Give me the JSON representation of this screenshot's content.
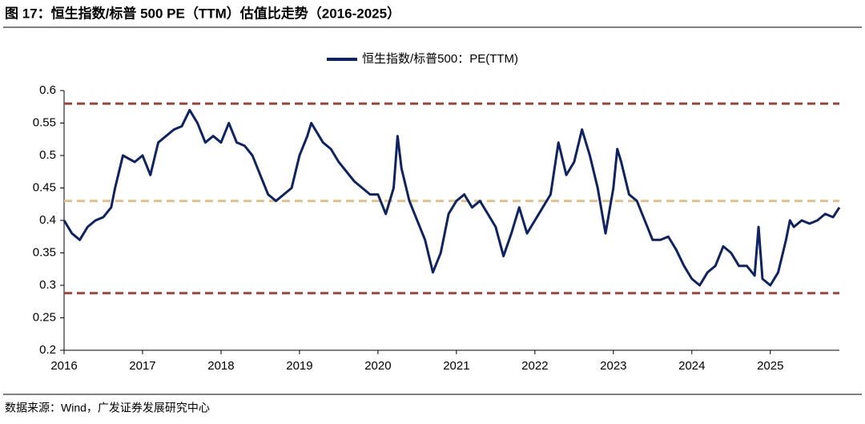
{
  "chart_data": {
    "type": "line",
    "title": "图 17：恒生指数/标普 500 PE（TTM）估值比走势（2016-2025）",
    "source": "数据来源：Wind，广发证券发展研究中心",
    "series": [
      {
        "name": "恒生指数/标普500：PE(TTM)",
        "color": "#0d2366",
        "x": [
          2016.0,
          2016.1,
          2016.2,
          2016.3,
          2016.4,
          2016.5,
          2016.6,
          2016.65,
          2016.75,
          2016.9,
          2017.0,
          2017.1,
          2017.2,
          2017.3,
          2017.4,
          2017.5,
          2017.6,
          2017.7,
          2017.8,
          2017.9,
          2018.0,
          2018.1,
          2018.2,
          2018.3,
          2018.4,
          2018.5,
          2018.6,
          2018.7,
          2018.8,
          2018.9,
          2019.0,
          2019.1,
          2019.15,
          2019.3,
          2019.4,
          2019.5,
          2019.6,
          2019.7,
          2019.8,
          2019.9,
          2020.0,
          2020.1,
          2020.2,
          2020.25,
          2020.3,
          2020.4,
          2020.5,
          2020.6,
          2020.7,
          2020.8,
          2020.9,
          2021.0,
          2021.1,
          2021.2,
          2021.3,
          2021.4,
          2021.5,
          2021.6,
          2021.7,
          2021.8,
          2021.9,
          2022.0,
          2022.1,
          2022.2,
          2022.3,
          2022.4,
          2022.5,
          2022.6,
          2022.7,
          2022.8,
          2022.9,
          2023.0,
          2023.05,
          2023.1,
          2023.2,
          2023.3,
          2023.4,
          2023.5,
          2023.6,
          2023.7,
          2023.8,
          2023.9,
          2024.0,
          2024.1,
          2024.2,
          2024.3,
          2024.4,
          2024.5,
          2024.6,
          2024.7,
          2024.8,
          2024.85,
          2024.9,
          2025.0,
          2025.1,
          2025.2,
          2025.25,
          2025.3,
          2025.4,
          2025.5,
          2025.6,
          2025.7,
          2025.8,
          2025.88
        ],
        "values": [
          0.4,
          0.38,
          0.37,
          0.39,
          0.4,
          0.405,
          0.42,
          0.45,
          0.5,
          0.49,
          0.5,
          0.47,
          0.52,
          0.53,
          0.54,
          0.545,
          0.57,
          0.55,
          0.52,
          0.53,
          0.52,
          0.55,
          0.52,
          0.515,
          0.5,
          0.47,
          0.44,
          0.43,
          0.44,
          0.45,
          0.5,
          0.53,
          0.55,
          0.52,
          0.51,
          0.49,
          0.475,
          0.46,
          0.45,
          0.44,
          0.44,
          0.41,
          0.45,
          0.53,
          0.48,
          0.43,
          0.4,
          0.37,
          0.32,
          0.35,
          0.41,
          0.43,
          0.44,
          0.42,
          0.43,
          0.41,
          0.39,
          0.345,
          0.38,
          0.42,
          0.38,
          0.4,
          0.42,
          0.44,
          0.52,
          0.47,
          0.49,
          0.54,
          0.5,
          0.45,
          0.38,
          0.45,
          0.51,
          0.49,
          0.44,
          0.43,
          0.4,
          0.37,
          0.37,
          0.375,
          0.355,
          0.33,
          0.31,
          0.3,
          0.32,
          0.33,
          0.36,
          0.35,
          0.33,
          0.33,
          0.315,
          0.39,
          0.31,
          0.3,
          0.32,
          0.37,
          0.4,
          0.39,
          0.4,
          0.395,
          0.4,
          0.41,
          0.405,
          0.42
        ]
      }
    ],
    "reference_lines": [
      {
        "value": 0.58,
        "color": "#a0453d"
      },
      {
        "value": 0.43,
        "color": "#e0c08a"
      },
      {
        "value": 0.288,
        "color": "#a0453d"
      }
    ],
    "xlim": [
      2016,
      2025.88
    ],
    "xticks": [
      2016,
      2017,
      2018,
      2019,
      2020,
      2021,
      2022,
      2023,
      2024,
      2025
    ],
    "ylim": [
      0.2,
      0.6
    ],
    "yticks": [
      0.2,
      0.25,
      0.3,
      0.35,
      0.4,
      0.45,
      0.5,
      0.55,
      0.6
    ],
    "legend": "top"
  }
}
